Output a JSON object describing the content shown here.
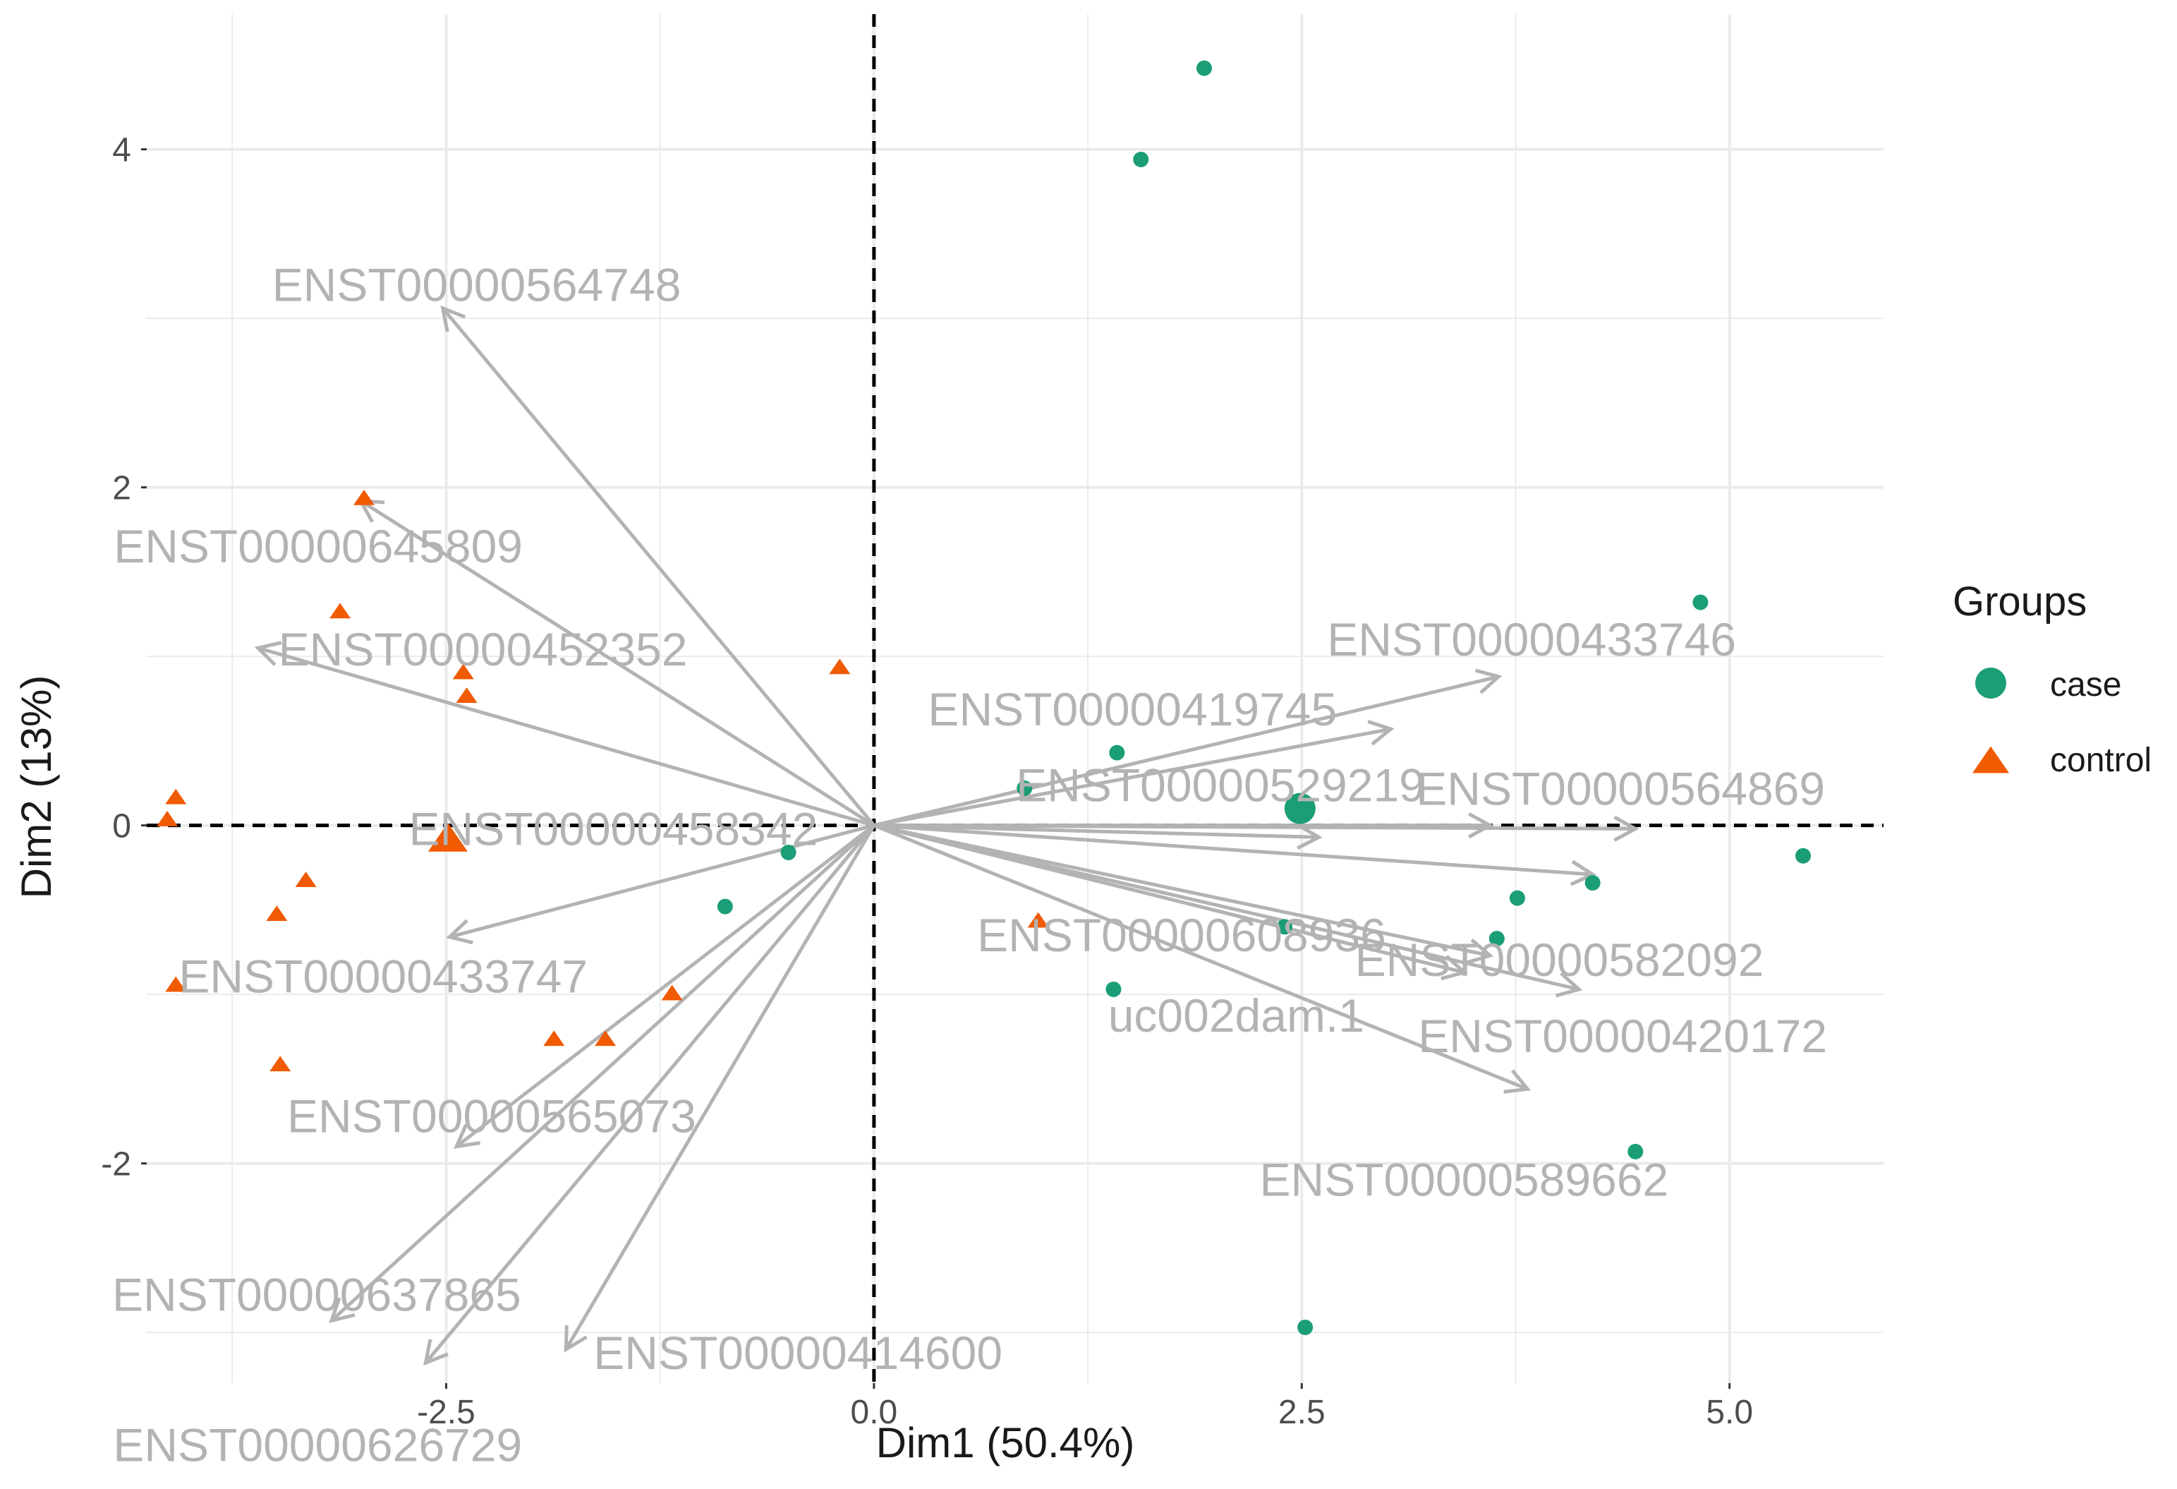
{
  "chart_data": {
    "type": "scatter",
    "subtype": "pca-biplot",
    "title": "",
    "xlabel": "Dim1 (50.4%)",
    "ylabel": "Dim2 (13%)",
    "xlim": [
      -4.25,
      5.9
    ],
    "ylim": [
      -3.3,
      4.8
    ],
    "x_ticks": [
      -2.5,
      0.0,
      2.5,
      5.0
    ],
    "x_tick_labels": [
      "-2.5",
      "0.0",
      "2.5",
      "5.0"
    ],
    "y_ticks": [
      -2,
      0,
      2,
      4
    ],
    "y_tick_labels": [
      "-2",
      "0",
      "2",
      "4"
    ],
    "grid": true,
    "colors": {
      "case": "#1b9e77",
      "control": "#f05a00",
      "arrow": "#b3b3b3",
      "arrow_label": "#b3b3b3",
      "grid": "#ebebeb",
      "axis_text": "#4d4d4d",
      "title_text": "#1a1a1a"
    },
    "legend": {
      "title": "Groups",
      "placement": "right",
      "entries": [
        {
          "label": "case",
          "shape": "circle",
          "group": "case"
        },
        {
          "label": "control",
          "shape": "triangle",
          "group": "control"
        }
      ]
    },
    "series": [
      {
        "name": "case",
        "shape": "circle",
        "points": [
          [
            1.93,
            4.48
          ],
          [
            1.56,
            3.94
          ],
          [
            4.83,
            1.32
          ],
          [
            1.42,
            0.43
          ],
          [
            0.88,
            0.22
          ],
          [
            -0.5,
            -0.16
          ],
          [
            -0.87,
            -0.48
          ],
          [
            2.4,
            -0.6
          ],
          [
            3.64,
            -0.67
          ],
          [
            3.76,
            -0.43
          ],
          [
            4.2,
            -0.34
          ],
          [
            5.43,
            -0.18
          ],
          [
            1.4,
            -0.97
          ],
          [
            4.45,
            -1.93
          ],
          [
            2.52,
            -2.97
          ]
        ],
        "centroid": [
          2.49,
          0.1
        ]
      },
      {
        "name": "control",
        "shape": "triangle",
        "points": [
          [
            -2.98,
            1.93
          ],
          [
            -3.12,
            1.26
          ],
          [
            -2.4,
            0.9
          ],
          [
            -2.38,
            0.76
          ],
          [
            -0.2,
            0.93
          ],
          [
            -4.08,
            0.16
          ],
          [
            -4.13,
            0.03
          ],
          [
            -3.32,
            -0.33
          ],
          [
            -3.49,
            -0.53
          ],
          [
            -4.08,
            -0.95
          ],
          [
            -3.47,
            -1.42
          ],
          [
            -1.87,
            -1.27
          ],
          [
            -1.57,
            -1.27
          ],
          [
            -1.18,
            -1.0
          ],
          [
            0.96,
            -0.57
          ]
        ],
        "centroid": [
          -2.49,
          -0.09
        ]
      }
    ],
    "variables": [
      {
        "name": "ENST00000564748",
        "x": -2.52,
        "y": 3.06
      },
      {
        "name": "ENST00000645809",
        "x": -3.0,
        "y": 1.92
      },
      {
        "name": "ENST00000452352",
        "x": -3.6,
        "y": 1.05
      },
      {
        "name": "ENST00000458342",
        "x": 2.6,
        "y": -0.07
      },
      {
        "name": "ENST00000433747",
        "x": -2.48,
        "y": -0.66
      },
      {
        "name": "ENST00000565073",
        "x": -2.44,
        "y": -1.9
      },
      {
        "name": "ENST00000637865",
        "x": -3.17,
        "y": -2.93
      },
      {
        "name": "ENST00000626729",
        "x": -2.62,
        "y": -3.18
      },
      {
        "name": "ENST00000414600",
        "x": -1.8,
        "y": -3.1
      },
      {
        "name": "ENST00000433746",
        "x": 3.65,
        "y": 0.88
      },
      {
        "name": "ENST00000419745",
        "x": 3.02,
        "y": 0.57
      },
      {
        "name": "ENST00000529219",
        "x": 3.6,
        "y": 0.0
      },
      {
        "name": "ENST00000564869",
        "x": 4.45,
        "y": -0.02
      },
      {
        "name": "ENST00000608936",
        "x": 3.6,
        "y": -0.77
      },
      {
        "name": "ENST00000582092",
        "x": 4.2,
        "y": -0.29
      },
      {
        "name": "uc002dam.1",
        "x": 3.45,
        "y": -0.87
      },
      {
        "name": "ENST00000420172",
        "x": 4.12,
        "y": -0.97
      },
      {
        "name": "ENST00000589662",
        "x": 3.82,
        "y": -1.56
      }
    ]
  }
}
